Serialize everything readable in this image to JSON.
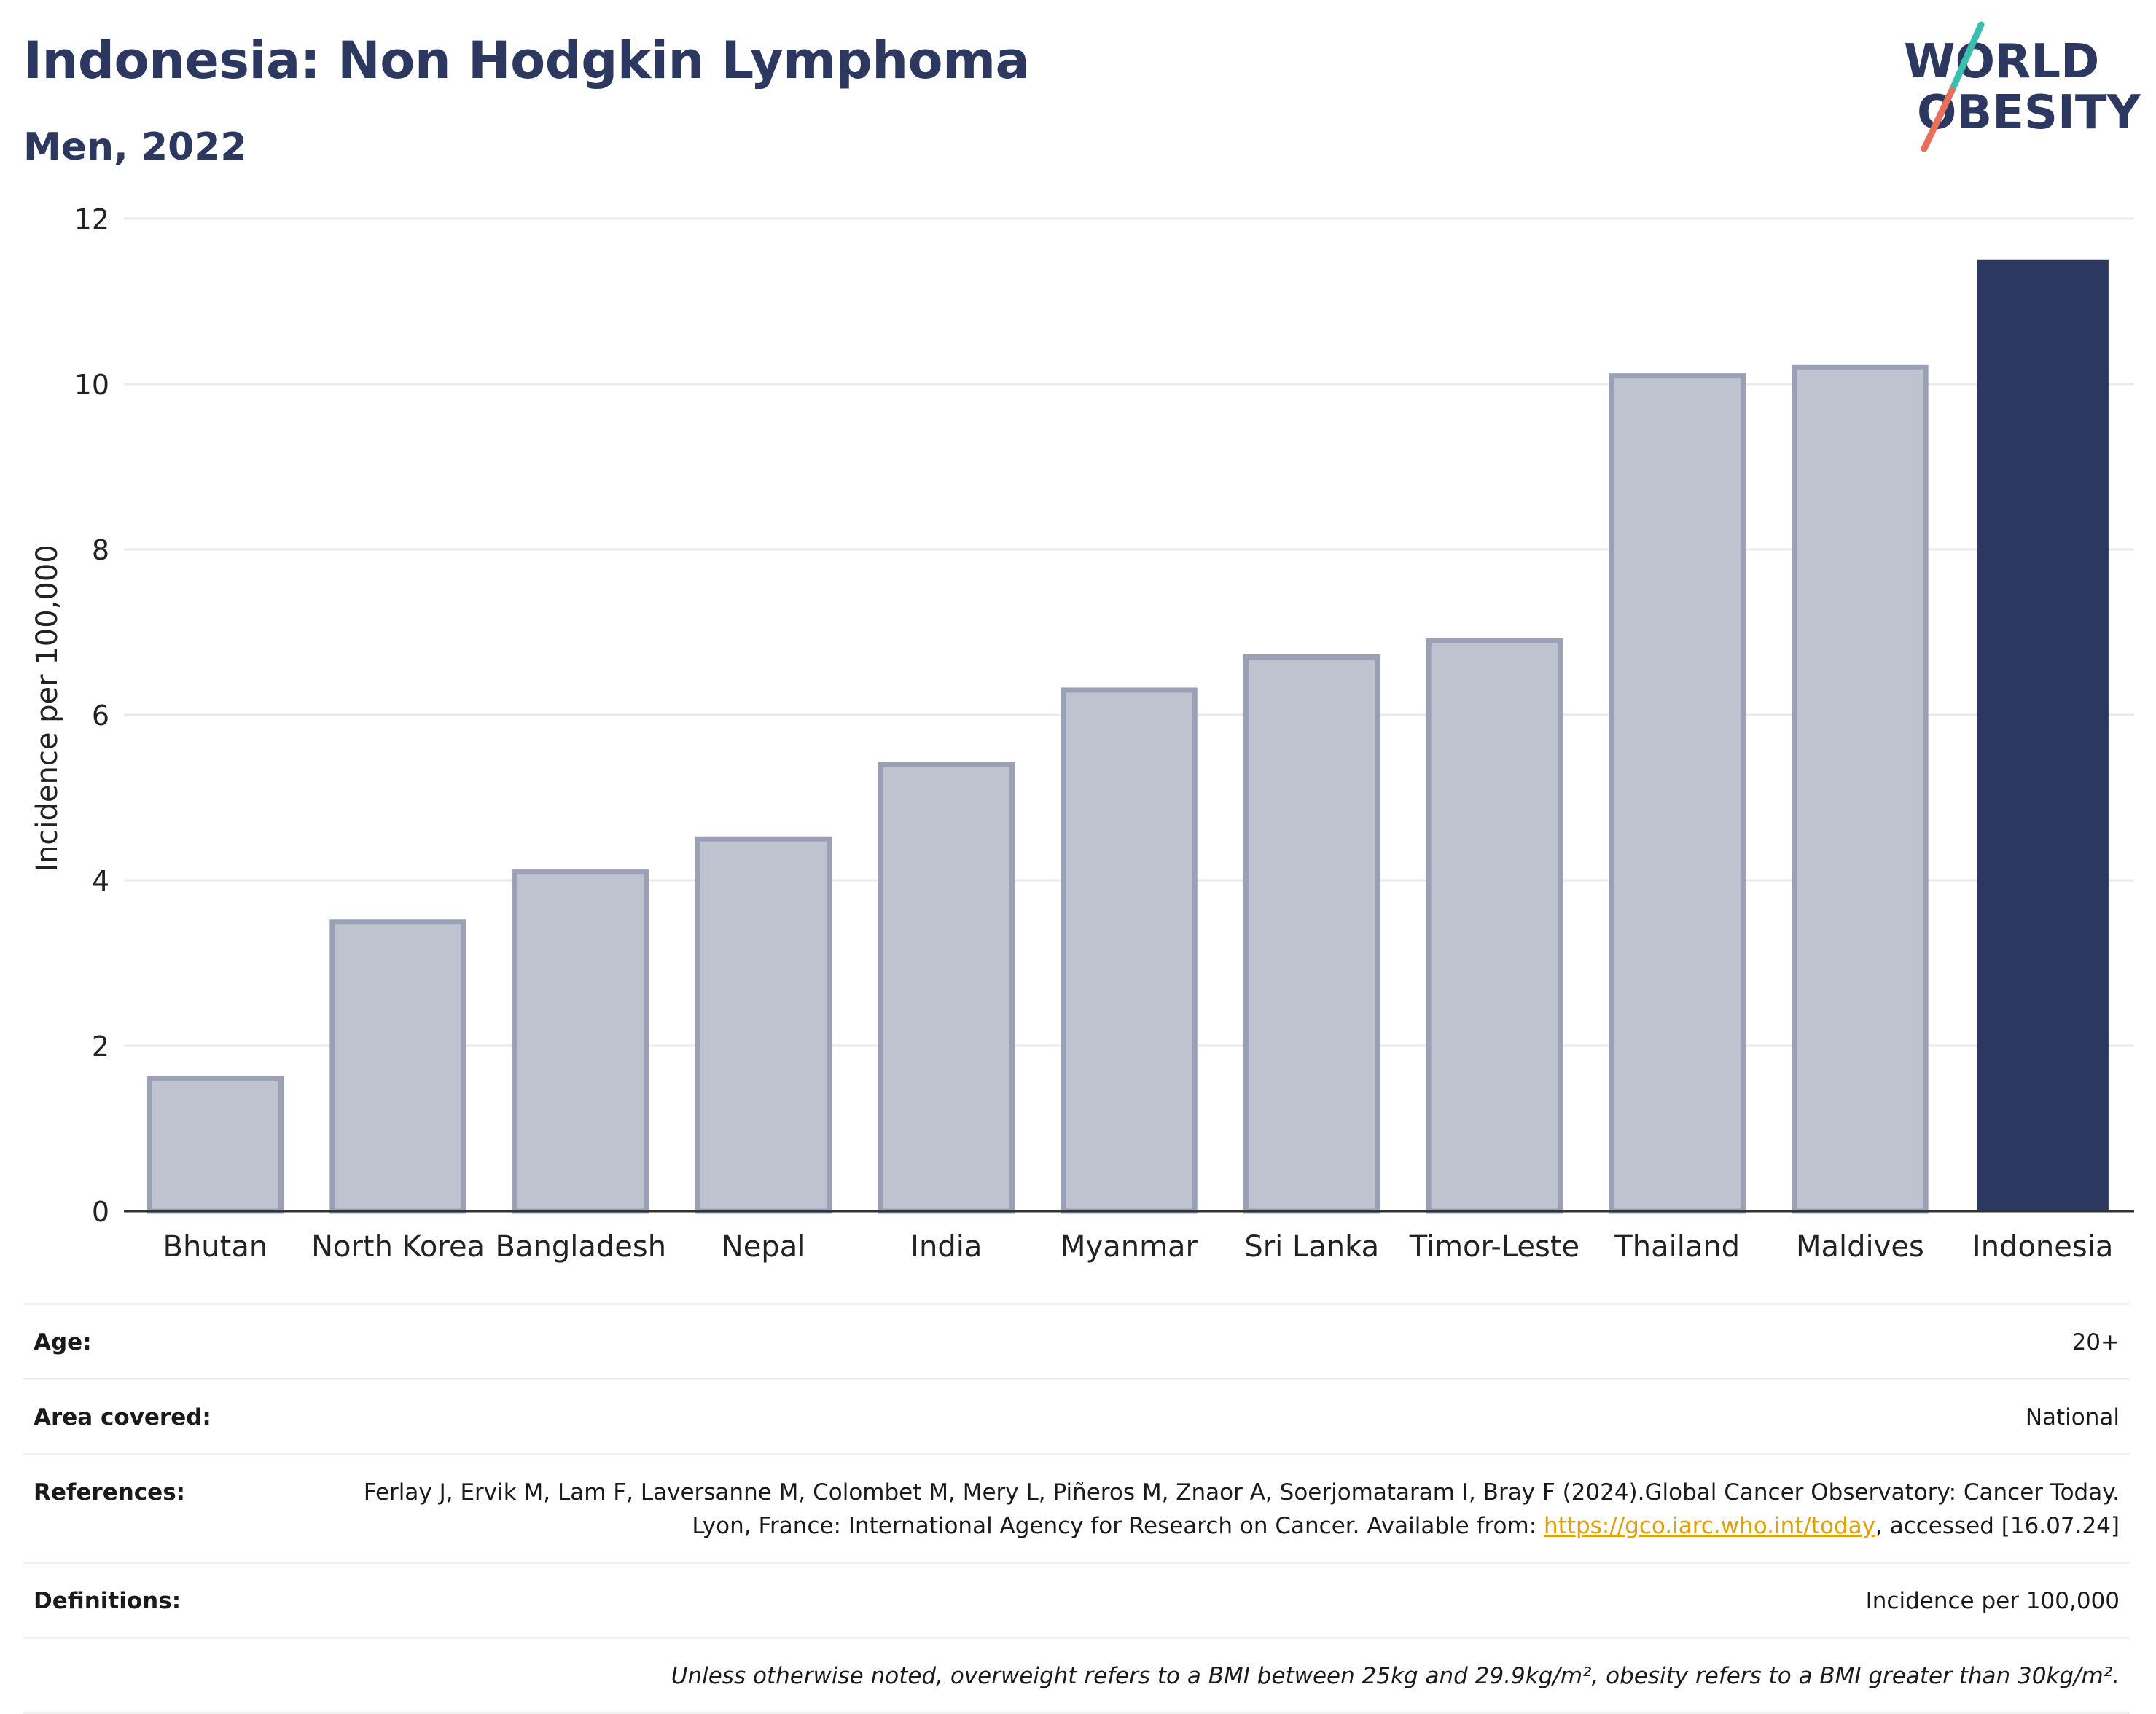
{
  "header": {
    "title": "Indonesia: Non Hodgkin Lymphoma",
    "subtitle": "Men, 2022"
  },
  "logo": {
    "line1": "WORLD",
    "line2": "OBESITY",
    "colors": {
      "text": "#2c3860",
      "slash_top": "#3bbfb0",
      "slash_bottom": "#e8705a"
    }
  },
  "colors": {
    "highlight_bar": "#2c3860",
    "other_bar_fill": "#bfc3d0",
    "other_bar_stroke": "#9aa0b5",
    "grid": "#e8eaf0",
    "axis": "#333333"
  },
  "chart_data": {
    "type": "bar",
    "title": "Indonesia: Non Hodgkin Lymphoma",
    "subtitle": "Men, 2022",
    "xlabel": "",
    "ylabel": "Incidence per 100,000",
    "ylim": [
      0,
      12
    ],
    "yticks": [
      0,
      2,
      4,
      6,
      8,
      10,
      12
    ],
    "grid": true,
    "categories": [
      "Bhutan",
      "North Korea",
      "Bangladesh",
      "Nepal",
      "India",
      "Myanmar",
      "Sri Lanka",
      "Timor-Leste",
      "Thailand",
      "Maldives",
      "Indonesia"
    ],
    "values": [
      1.6,
      3.5,
      4.1,
      4.5,
      5.4,
      6.3,
      6.7,
      6.9,
      10.1,
      10.2,
      11.5
    ],
    "highlight": "Indonesia"
  },
  "info": {
    "age": {
      "label": "Age:",
      "value": "20+"
    },
    "area": {
      "label": "Area covered:",
      "value": "National"
    },
    "references": {
      "label": "References:",
      "text_before": "Ferlay J, Ervik M, Lam F, Laversanne M, Colombet M, Mery L, Piñeros M, Znaor A, Soerjomataram I, Bray F (2024).Global Cancer Observatory: Cancer Today. Lyon, France: International Agency for Research on Cancer. Available from: ",
      "link": "https://gco.iarc.who.int/today",
      "text_after": ", accessed [16.07.24]"
    },
    "definitions": {
      "label": "Definitions:",
      "value": "Incidence per 100,000"
    },
    "note": "Unless otherwise noted, overweight refers to a BMI between 25kg and 29.9kg/m², obesity refers to a BMI greater than 30kg/m²."
  }
}
